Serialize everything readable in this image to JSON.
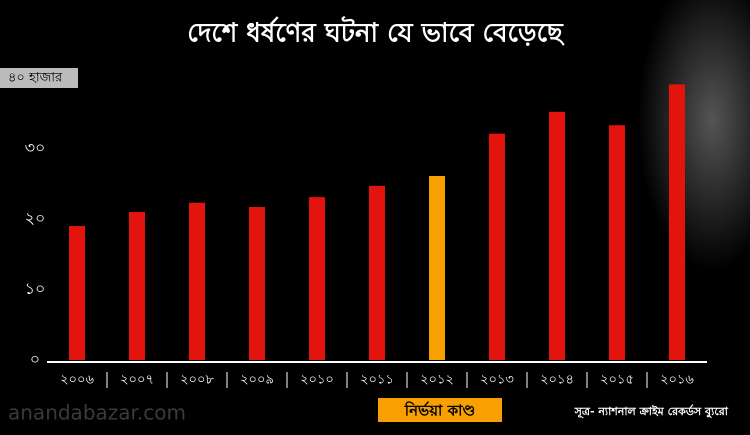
{
  "chart_data": {
    "type": "bar",
    "title": "দেশে ধর্ষণের ঘটনা যে ভাবে বেড়েছে",
    "categories": [
      "২০০৬",
      "২০০৭",
      "২০০৮",
      "২০০৯",
      "২০১০",
      "২০১১",
      "২০১২",
      "২০১৩",
      "২০১৪",
      "২০১৫",
      "২০১৬"
    ],
    "values": [
      19.0,
      21.0,
      22.3,
      21.7,
      23.1,
      24.7,
      26.1,
      32.1,
      35.2,
      33.3,
      39.1
    ],
    "colors": [
      "#e3140e",
      "#e3140e",
      "#e3140e",
      "#e3140e",
      "#e3140e",
      "#e3140e",
      "#f7a000",
      "#e3140e",
      "#e3140e",
      "#e3140e",
      "#e3140e"
    ],
    "ylim": [
      0,
      40
    ],
    "yticks": [
      {
        "value": 0,
        "label": "০"
      },
      {
        "value": 10,
        "label": "১০"
      },
      {
        "value": 20,
        "label": "২০"
      },
      {
        "value": 30,
        "label": "৩০"
      },
      {
        "value": 40,
        "label": "৪০ হাজার"
      }
    ],
    "annotation": "নির্ভয়া কাণ্ড",
    "source": "সূত্র- ন্যাশনাল ক্রাইম রেকর্ডস ব্যুরো",
    "watermark": "anandabazar.com"
  }
}
